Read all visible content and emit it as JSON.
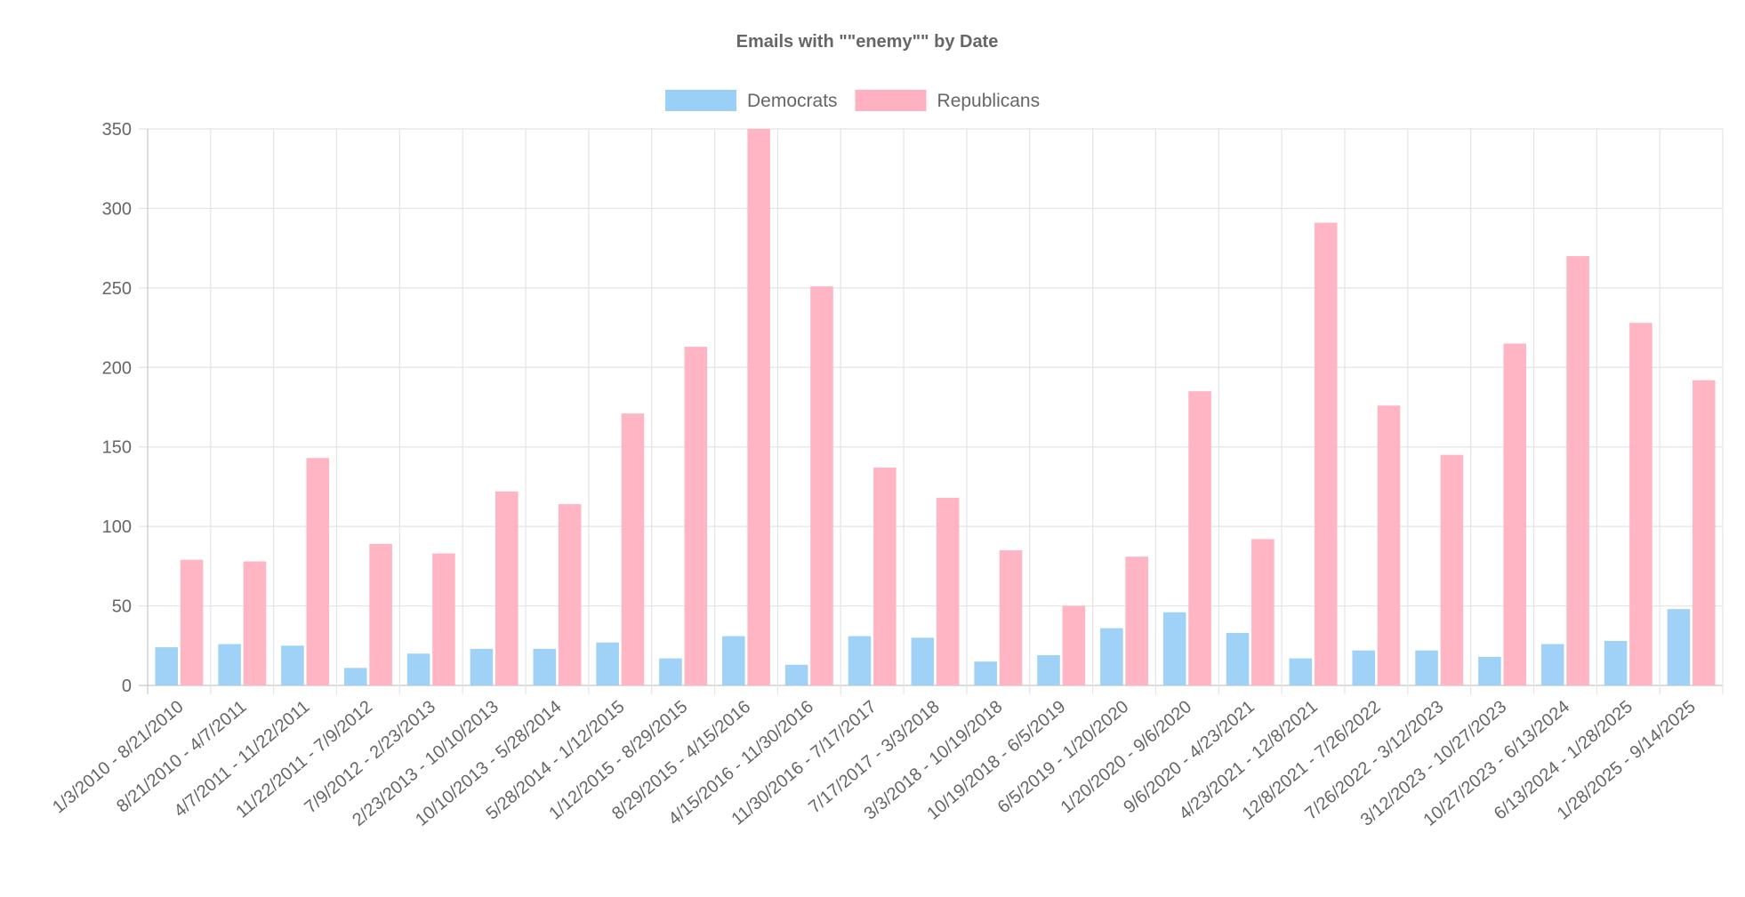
{
  "chart_data": {
    "type": "bar",
    "title": "Emails with \"\"enemy\"\" by Date",
    "xlabel": "",
    "ylabel": "",
    "ylim": [
      0,
      350
    ],
    "yticks": [
      0,
      50,
      100,
      150,
      200,
      250,
      300,
      350
    ],
    "grid": true,
    "legend_position": "top-center",
    "categories": [
      "1/3/2010 - 8/21/2010",
      "8/21/2010 - 4/7/2011",
      "4/7/2011 - 11/22/2011",
      "11/22/2011 - 7/9/2012",
      "7/9/2012 - 2/23/2013",
      "2/23/2013 - 10/10/2013",
      "10/10/2013 - 5/28/2014",
      "5/28/2014 - 1/12/2015",
      "1/12/2015 - 8/29/2015",
      "8/29/2015 - 4/15/2016",
      "4/15/2016 - 11/30/2016",
      "11/30/2016 - 7/17/2017",
      "7/17/2017 - 3/3/2018",
      "3/3/2018 - 10/19/2018",
      "10/19/2018 - 6/5/2019",
      "6/5/2019 - 1/20/2020",
      "1/20/2020 - 9/6/2020",
      "9/6/2020 - 4/23/2021",
      "4/23/2021 - 12/8/2021",
      "12/8/2021 - 7/26/2022",
      "7/26/2022 - 3/12/2023",
      "3/12/2023 - 10/27/2023",
      "10/27/2023 - 6/13/2024",
      "6/13/2024 - 1/28/2025",
      "1/28/2025 - 9/14/2025"
    ],
    "series": [
      {
        "name": "Democrats",
        "color": "#9ad0f5",
        "values": [
          24,
          26,
          25,
          11,
          20,
          23,
          23,
          27,
          17,
          31,
          13,
          31,
          30,
          15,
          19,
          36,
          46,
          33,
          17,
          22,
          22,
          18,
          26,
          28,
          48
        ]
      },
      {
        "name": "Republicans",
        "color": "#ffb1c1",
        "values": [
          79,
          78,
          143,
          89,
          83,
          122,
          114,
          171,
          213,
          350,
          251,
          137,
          118,
          85,
          50,
          81,
          185,
          92,
          291,
          176,
          145,
          215,
          270,
          228,
          192
        ]
      }
    ]
  }
}
